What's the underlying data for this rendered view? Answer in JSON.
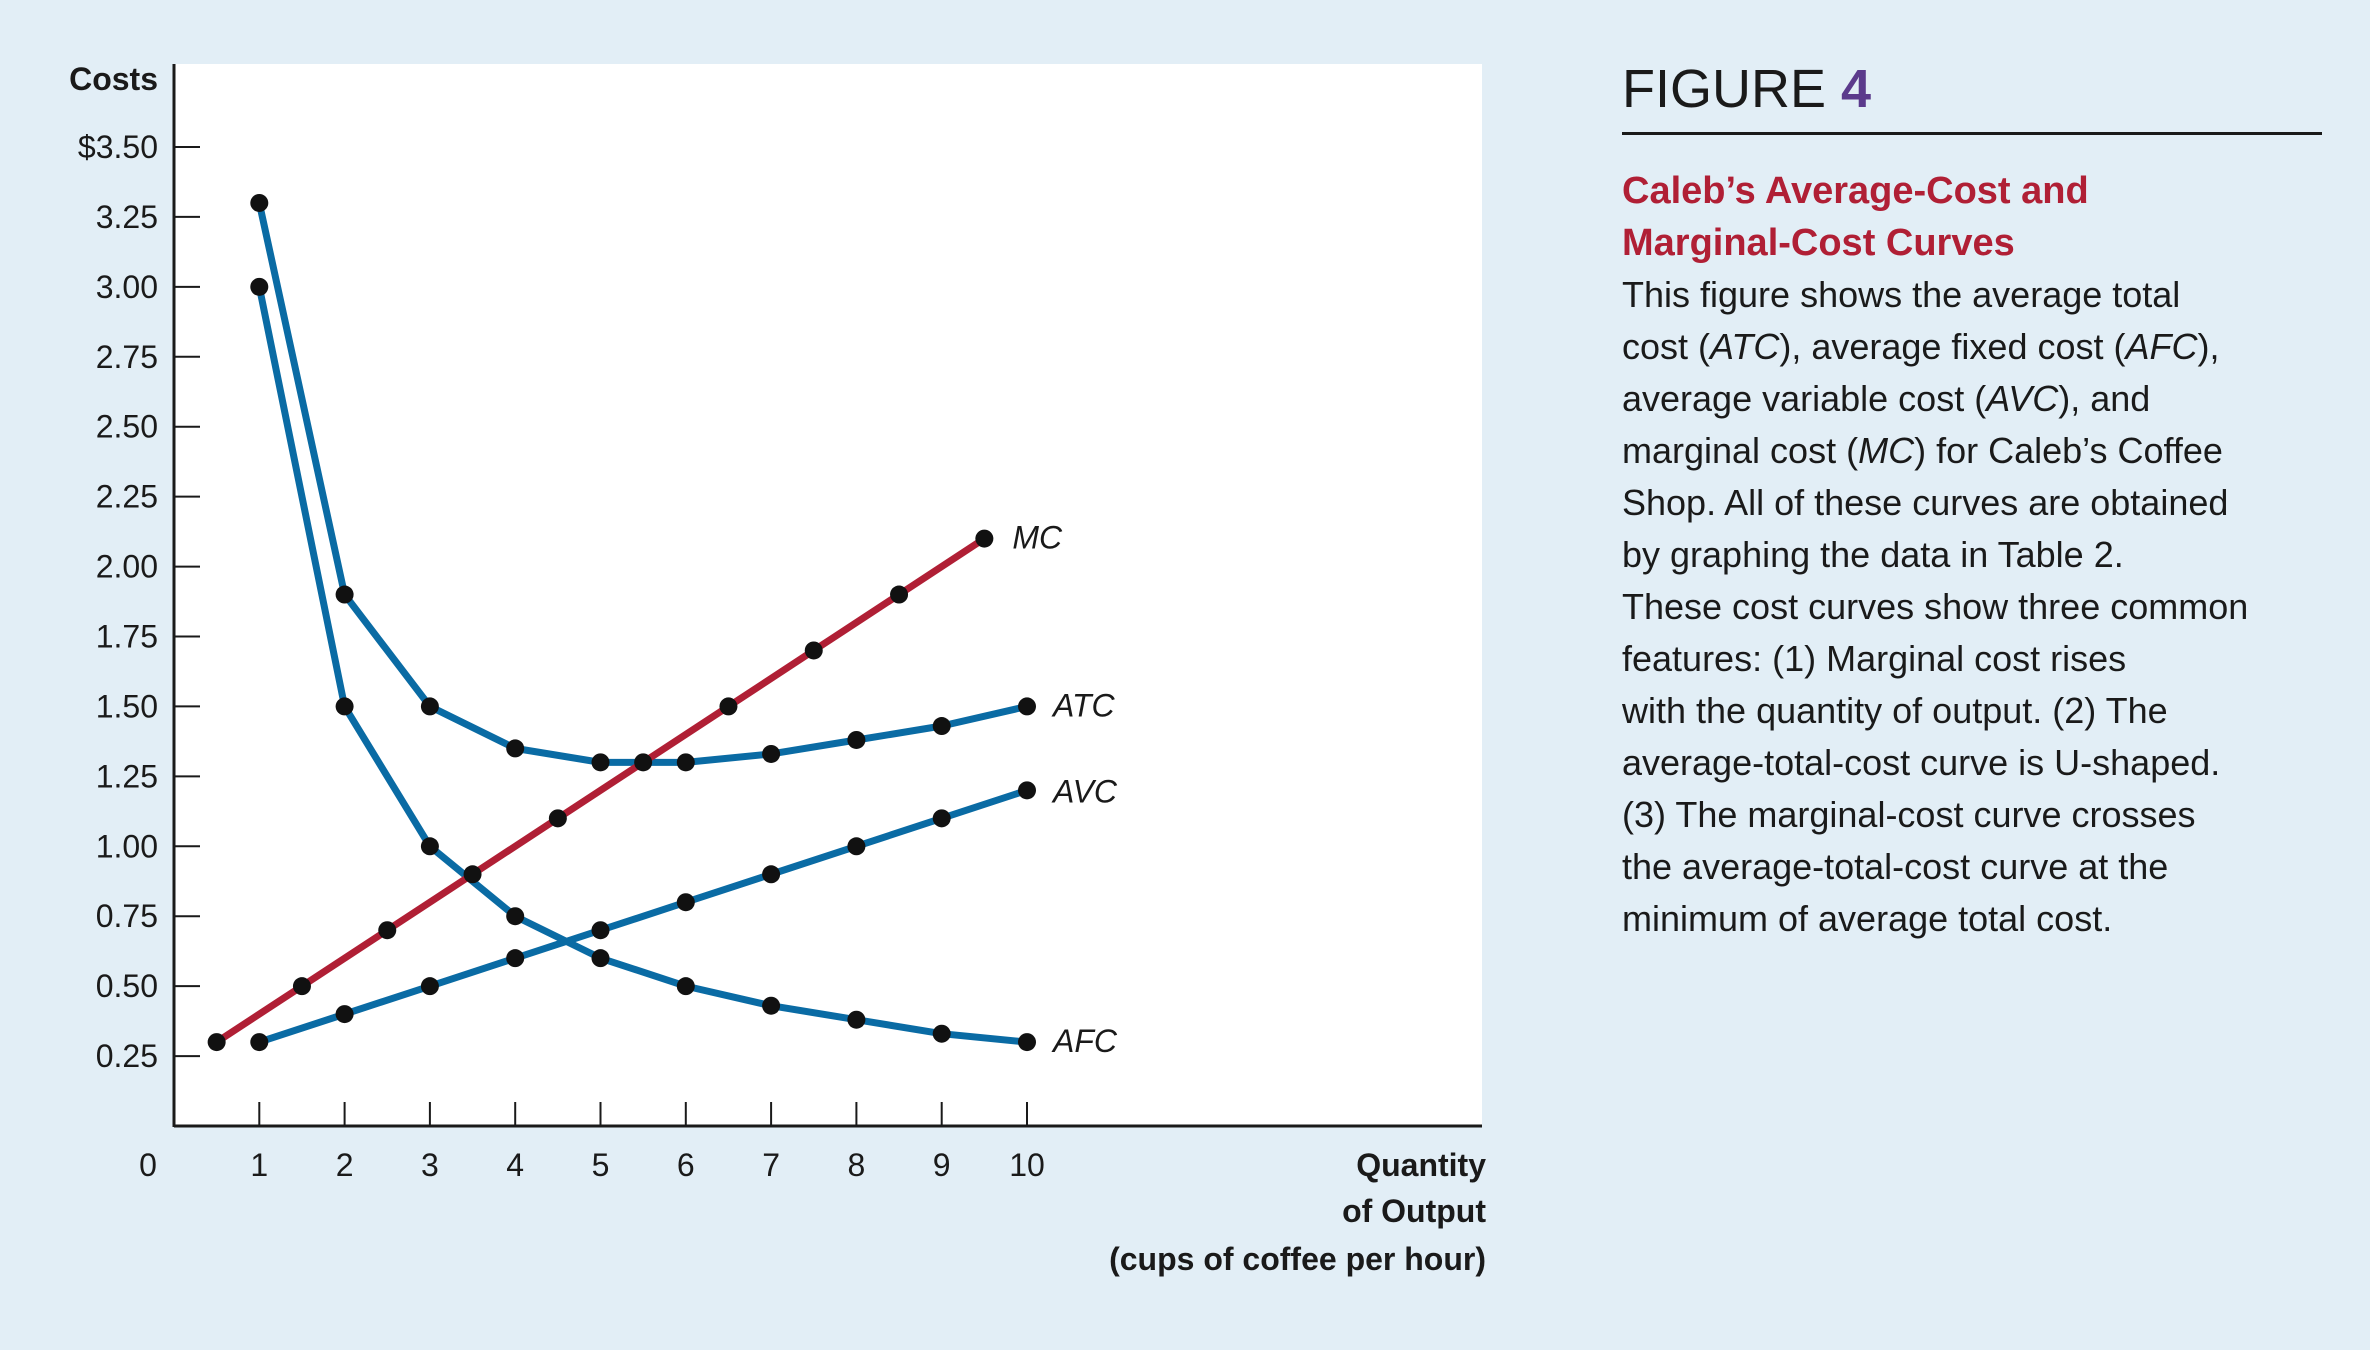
{
  "chart_data": {
    "type": "line",
    "ylabel": "Costs",
    "xlabel": [
      "Quantity",
      "of Output",
      "(cups of coffee per hour)"
    ],
    "xlim": [
      0,
      10
    ],
    "ylim": [
      0,
      3.5
    ],
    "x_ticks": [
      1,
      2,
      3,
      4,
      5,
      6,
      7,
      8,
      9,
      10
    ],
    "x_tick_labels": [
      "1",
      "2",
      "3",
      "4",
      "5",
      "6",
      "7",
      "8",
      "9",
      "10"
    ],
    "origin_label": "0",
    "y_ticks": [
      0.25,
      0.5,
      0.75,
      1.0,
      1.25,
      1.5,
      1.75,
      2.0,
      2.25,
      2.5,
      2.75,
      3.0,
      3.25,
      3.5
    ],
    "y_tick_labels": [
      "0.25",
      "0.50",
      "0.75",
      "1.00",
      "1.25",
      "1.50",
      "1.75",
      "2.00",
      "2.25",
      "2.50",
      "2.75",
      "3.00",
      "3.25",
      "$3.50"
    ],
    "grid": false,
    "series": [
      {
        "name": "MC",
        "color": "#b01f35",
        "x": [
          0.5,
          1.5,
          2.5,
          3.5,
          4.5,
          5.5,
          6.5,
          7.5,
          8.5,
          9.5
        ],
        "values": [
          0.3,
          0.5,
          0.7,
          0.9,
          1.1,
          1.3,
          1.5,
          1.7,
          1.9,
          2.1
        ]
      },
      {
        "name": "ATC",
        "color": "#0a6ba4",
        "x": [
          1,
          2,
          3,
          4,
          5,
          6,
          7,
          8,
          9,
          10
        ],
        "values": [
          3.3,
          1.9,
          1.5,
          1.35,
          1.3,
          1.3,
          1.33,
          1.38,
          1.43,
          1.5
        ]
      },
      {
        "name": "AVC",
        "color": "#0a6ba4",
        "x": [
          1,
          2,
          3,
          4,
          5,
          6,
          7,
          8,
          9,
          10
        ],
        "values": [
          0.3,
          0.4,
          0.5,
          0.6,
          0.7,
          0.8,
          0.9,
          1.0,
          1.1,
          1.2
        ]
      },
      {
        "name": "AFC",
        "color": "#0a6ba4",
        "x": [
          1,
          2,
          3,
          4,
          5,
          6,
          7,
          8,
          9,
          10
        ],
        "values": [
          3.0,
          1.5,
          1.0,
          0.75,
          0.6,
          0.5,
          0.43,
          0.38,
          0.33,
          0.3
        ]
      }
    ]
  },
  "caption": {
    "figure_word": "FIGURE",
    "figure_number": "4",
    "title_line1": "Caleb’s Average-Cost and",
    "title_line2": "Marginal-Cost Curves",
    "body_lines": [
      [
        {
          "t": "This figure shows the average total"
        }
      ],
      [
        {
          "t": "cost ("
        },
        {
          "t": "ATC",
          "i": true
        },
        {
          "t": "), average fixed cost ("
        },
        {
          "t": "AFC",
          "i": true
        },
        {
          "t": "),"
        }
      ],
      [
        {
          "t": "average variable cost ("
        },
        {
          "t": "AVC",
          "i": true
        },
        {
          "t": "), and"
        }
      ],
      [
        {
          "t": "marginal cost ("
        },
        {
          "t": "MC",
          "i": true
        },
        {
          "t": ") for Caleb’s Coffee"
        }
      ],
      [
        {
          "t": "Shop. All of these curves are obtained"
        }
      ],
      [
        {
          "t": "by graphing the data in Table 2."
        }
      ],
      [
        {
          "t": "These cost curves show three common"
        }
      ],
      [
        {
          "t": "features: (1) Marginal cost rises"
        }
      ],
      [
        {
          "t": "with the quantity of output. (2) The"
        }
      ],
      [
        {
          "t": "average-total-cost curve is U-shaped."
        }
      ],
      [
        {
          "t": "(3) The marginal-cost curve crosses"
        }
      ],
      [
        {
          "t": "the average-total-cost curve at the"
        }
      ],
      [
        {
          "t": "minimum of average total cost."
        }
      ]
    ]
  }
}
